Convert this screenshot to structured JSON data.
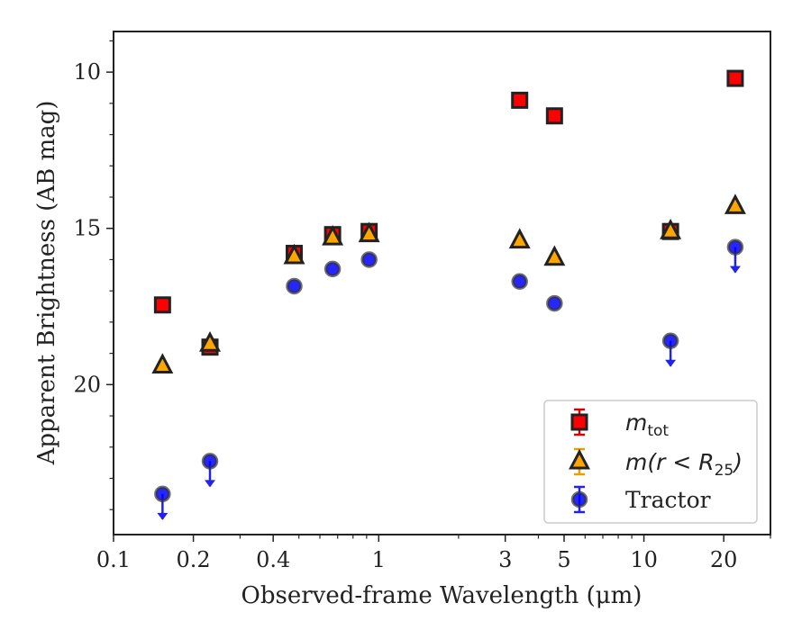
{
  "chart_data": {
    "type": "scatter",
    "xlabel": "Observed-frame Wavelength (μm)",
    "ylabel": "Apparent Brightness (AB mag)",
    "x_scale": "log",
    "y_inverted": true,
    "xlim": [
      0.1,
      30
    ],
    "ylim": [
      24.8,
      8.7
    ],
    "x_ticks": [
      {
        "value": 0.1,
        "label": "0.1"
      },
      {
        "value": 0.2,
        "label": "0.2"
      },
      {
        "value": 0.4,
        "label": "0.4"
      },
      {
        "value": 1,
        "label": "1"
      },
      {
        "value": 3,
        "label": "3"
      },
      {
        "value": 5,
        "label": "5"
      },
      {
        "value": 10,
        "label": "10"
      },
      {
        "value": 20,
        "label": "20"
      }
    ],
    "y_ticks": [
      {
        "value": 10,
        "label": "10"
      },
      {
        "value": 15,
        "label": "15"
      },
      {
        "value": 20,
        "label": "20"
      }
    ],
    "legend_position": "lower-right",
    "series": [
      {
        "name_main": "m",
        "name_sub": "tot",
        "marker": "square",
        "face_color": "#ff0000",
        "edge_color": "#222222",
        "points": [
          {
            "x": 0.153,
            "y": 17.45
          },
          {
            "x": 0.231,
            "y": 18.8
          },
          {
            "x": 0.48,
            "y": 15.8
          },
          {
            "x": 0.67,
            "y": 15.2
          },
          {
            "x": 0.92,
            "y": 15.1
          },
          {
            "x": 3.4,
            "y": 10.9
          },
          {
            "x": 4.6,
            "y": 11.4
          },
          {
            "x": 12.6,
            "y": 15.1
          },
          {
            "x": 22.1,
            "y": 10.2
          }
        ]
      },
      {
        "name_main": "m",
        "name_sub": "25",
        "name_math": "m(r < R",
        "marker": "triangle",
        "face_color": "#ffa500",
        "edge_color": "#222222",
        "points": [
          {
            "x": 0.153,
            "y": 19.4
          },
          {
            "x": 0.231,
            "y": 18.7
          },
          {
            "x": 0.48,
            "y": 15.9
          },
          {
            "x": 0.67,
            "y": 15.3
          },
          {
            "x": 0.92,
            "y": 15.2
          },
          {
            "x": 3.4,
            "y": 15.4
          },
          {
            "x": 4.6,
            "y": 15.95
          },
          {
            "x": 12.6,
            "y": 15.1
          },
          {
            "x": 22.1,
            "y": 14.3
          }
        ]
      },
      {
        "name": "Tractor",
        "marker": "circle",
        "face_color": "#0000ff",
        "edge_color": "#222222",
        "points": [
          {
            "x": 0.153,
            "y": 23.5,
            "upper_limit": true
          },
          {
            "x": 0.231,
            "y": 22.45,
            "upper_limit": true
          },
          {
            "x": 0.48,
            "y": 16.85
          },
          {
            "x": 0.67,
            "y": 16.3
          },
          {
            "x": 0.92,
            "y": 16.0
          },
          {
            "x": 3.4,
            "y": 16.7
          },
          {
            "x": 4.6,
            "y": 17.4
          },
          {
            "x": 12.6,
            "y": 18.6,
            "upper_limit": true
          },
          {
            "x": 22.1,
            "y": 15.6,
            "upper_limit": true
          }
        ]
      }
    ]
  }
}
